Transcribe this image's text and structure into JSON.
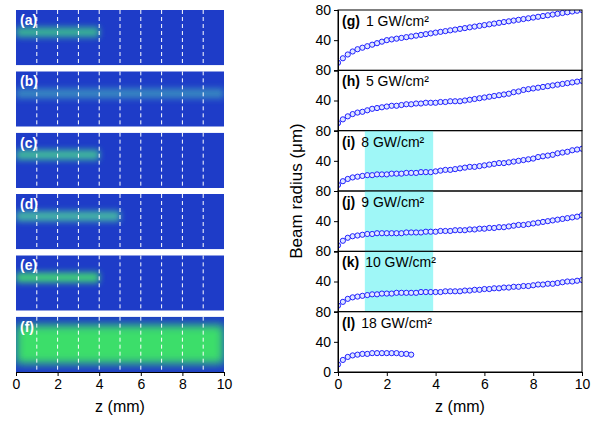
{
  "chart_data": [
    {
      "type": "image",
      "panel": "(a)",
      "xlim": [
        0,
        10
      ],
      "vlines": [
        1,
        2,
        3,
        4,
        5,
        6,
        7,
        8,
        9
      ],
      "beam_z": [
        0,
        4
      ],
      "color": "#3cc090",
      "line_style": "narrow"
    },
    {
      "type": "image",
      "panel": "(b)",
      "xlim": [
        0,
        10
      ],
      "vlines": [
        1,
        2,
        3,
        4,
        5,
        6,
        7,
        8,
        9
      ],
      "beam_z": [
        0,
        10
      ],
      "color": "#3a8fc0",
      "line_style": "narrow"
    },
    {
      "type": "image",
      "panel": "(c)",
      "xlim": [
        0,
        10
      ],
      "vlines": [
        1,
        2,
        3,
        4,
        5,
        6,
        7,
        8,
        9
      ],
      "beam_z": [
        0,
        4
      ],
      "color": "#44c896",
      "line_style": "narrow"
    },
    {
      "type": "image",
      "panel": "(d)",
      "xlim": [
        0,
        10
      ],
      "vlines": [
        1,
        2,
        3,
        4,
        5,
        6,
        7,
        8,
        9
      ],
      "beam_z": [
        0,
        5
      ],
      "color": "#48c4a0",
      "line_style": "narrow"
    },
    {
      "type": "image",
      "panel": "(e)",
      "xlim": [
        0,
        10
      ],
      "vlines": [
        1,
        2,
        3,
        4,
        5,
        6,
        7,
        8,
        9
      ],
      "beam_z": [
        0,
        4
      ],
      "color": "#44e070",
      "line_style": "narrow"
    },
    {
      "type": "image",
      "panel": "(f)",
      "xlim": [
        0,
        10
      ],
      "vlines": [
        1,
        2,
        3,
        4,
        5,
        6,
        7,
        8,
        9
      ],
      "beam_z": [
        0,
        10
      ],
      "color": "#40f060",
      "line_style": "wide",
      "xticks": [
        0,
        2,
        4,
        6,
        8,
        10
      ],
      "xlabel": "z (mm)"
    },
    {
      "type": "scatter",
      "panel": "(g)",
      "title": "1 GW/cm²",
      "ylabel": "Beam radius (μm)",
      "xlim": [
        0,
        10
      ],
      "ylim": [
        0,
        80
      ],
      "yticks": [
        40,
        80
      ],
      "marker": "circle",
      "color": "#2020ff",
      "x": [
        0,
        0.2,
        0.4,
        0.6,
        0.8,
        1,
        1.2,
        1.4,
        1.6,
        1.8,
        2,
        2.2,
        2.4,
        2.6,
        2.8,
        3,
        3.2,
        3.4,
        3.6,
        3.8,
        4,
        4.2,
        4.4,
        4.6,
        4.8,
        5,
        5.2,
        5.4,
        5.6,
        5.8,
        6,
        6.2,
        6.4,
        6.6,
        6.8,
        7,
        7.2,
        7.4,
        7.6,
        7.8,
        8,
        8.2,
        8.4,
        8.6,
        8.8,
        9,
        9.2,
        9.4,
        9.6,
        9.8,
        10
      ],
      "values": [
        10,
        16,
        21,
        25,
        28,
        30,
        32,
        34,
        36,
        38,
        40,
        41,
        42,
        43,
        44,
        45,
        46,
        47,
        48,
        49,
        50,
        51,
        52,
        53,
        54,
        55,
        56,
        57,
        58,
        59,
        60,
        61,
        62,
        63,
        64,
        65,
        66,
        67,
        68,
        69,
        70,
        71,
        72,
        73,
        74,
        75,
        76,
        77,
        78,
        79,
        80
      ]
    },
    {
      "type": "scatter",
      "panel": "(h)",
      "title": "5 GW/cm²",
      "xlim": [
        0,
        10
      ],
      "ylim": [
        0,
        80
      ],
      "yticks": [
        40,
        80
      ],
      "marker": "circle",
      "color": "#2020ff",
      "x": [
        0,
        0.2,
        0.4,
        0.6,
        0.8,
        1,
        1.2,
        1.4,
        1.6,
        1.8,
        2,
        2.2,
        2.4,
        2.6,
        2.8,
        3,
        3.2,
        3.4,
        3.6,
        3.8,
        4,
        4.2,
        4.4,
        4.6,
        4.8,
        5,
        5.2,
        5.4,
        5.6,
        5.8,
        6,
        6.2,
        6.4,
        6.6,
        6.8,
        7,
        7.2,
        7.4,
        7.6,
        7.8,
        8,
        8.2,
        8.4,
        8.6,
        8.8,
        9,
        9.2,
        9.4,
        9.6,
        9.8,
        10
      ],
      "values": [
        10,
        15,
        19,
        22,
        24,
        25,
        27,
        29,
        30,
        31,
        32,
        33,
        33,
        34,
        35,
        35,
        36,
        36,
        37,
        37,
        37,
        38,
        38,
        39,
        39,
        39,
        40,
        41,
        42,
        43,
        44,
        45,
        46,
        47,
        48,
        49,
        51,
        52,
        54,
        55,
        56,
        57,
        58,
        59,
        60,
        61,
        62,
        63,
        64,
        65,
        66
      ]
    },
    {
      "type": "scatter",
      "panel": "(i)",
      "title": "8 GW/cm²",
      "xlim": [
        0,
        10
      ],
      "ylim": [
        0,
        80
      ],
      "yticks": [
        40,
        80
      ],
      "marker": "circle",
      "color": "#2020ff",
      "highlight_z": [
        1.1,
        3.9
      ],
      "x": [
        0,
        0.2,
        0.4,
        0.6,
        0.8,
        1,
        1.2,
        1.4,
        1.6,
        1.8,
        2,
        2.2,
        2.4,
        2.6,
        2.8,
        3,
        3.2,
        3.4,
        3.6,
        3.8,
        4,
        4.2,
        4.4,
        4.6,
        4.8,
        5,
        5.2,
        5.4,
        5.6,
        5.8,
        6,
        6.2,
        6.4,
        6.6,
        6.8,
        7,
        7.2,
        7.4,
        7.6,
        7.8,
        8,
        8.2,
        8.4,
        8.6,
        8.8,
        9,
        9.2,
        9.4,
        9.6,
        9.8,
        10
      ],
      "values": [
        8,
        13,
        16,
        18,
        19,
        20,
        21,
        21,
        22,
        22,
        22,
        23,
        23,
        23,
        24,
        24,
        24,
        25,
        25,
        25,
        26,
        27,
        28,
        28,
        29,
        30,
        31,
        32,
        32,
        33,
        34,
        35,
        36,
        37,
        37,
        38,
        39,
        40,
        41,
        42,
        43,
        45,
        46,
        47,
        48,
        50,
        51,
        52,
        54,
        55,
        56
      ]
    },
    {
      "type": "scatter",
      "panel": "(j)",
      "title": "9 GW/cm²",
      "xlim": [
        0,
        10
      ],
      "ylim": [
        0,
        80
      ],
      "yticks": [
        40,
        80
      ],
      "marker": "circle",
      "color": "#2020ff",
      "highlight_z": [
        1.1,
        3.9
      ],
      "x": [
        0,
        0.2,
        0.4,
        0.6,
        0.8,
        1,
        1.2,
        1.4,
        1.6,
        1.8,
        2,
        2.2,
        2.4,
        2.6,
        2.8,
        3,
        3.2,
        3.4,
        3.6,
        3.8,
        4,
        4.2,
        4.4,
        4.6,
        4.8,
        5,
        5.2,
        5.4,
        5.6,
        5.8,
        6,
        6.2,
        6.4,
        6.6,
        6.8,
        7,
        7.2,
        7.4,
        7.6,
        7.8,
        8,
        8.2,
        8.4,
        8.6,
        8.8,
        9,
        9.2,
        9.4,
        9.6,
        9.8,
        10
      ],
      "values": [
        8,
        14,
        18,
        20,
        21,
        22,
        23,
        23,
        24,
        24,
        24,
        24,
        24,
        24,
        25,
        25,
        25,
        25,
        26,
        26,
        26,
        27,
        27,
        27,
        28,
        28,
        28,
        29,
        29,
        30,
        30,
        31,
        31,
        32,
        32,
        33,
        34,
        35,
        35,
        36,
        37,
        38,
        39,
        40,
        41,
        42,
        43,
        44,
        45,
        46,
        48
      ]
    },
    {
      "type": "scatter",
      "panel": "(k)",
      "title": "10 GW/cm²",
      "xlim": [
        0,
        10
      ],
      "ylim": [
        0,
        80
      ],
      "yticks": [
        40,
        80
      ],
      "marker": "circle",
      "color": "#2020ff",
      "highlight_z": [
        1.1,
        3.9
      ],
      "x": [
        0,
        0.2,
        0.4,
        0.6,
        0.8,
        1,
        1.2,
        1.4,
        1.6,
        1.8,
        2,
        2.2,
        2.4,
        2.6,
        2.8,
        3,
        3.2,
        3.4,
        3.6,
        3.8,
        4,
        4.2,
        4.4,
        4.6,
        4.8,
        5,
        5.2,
        5.4,
        5.6,
        5.8,
        6,
        6.2,
        6.4,
        6.6,
        6.8,
        7,
        7.2,
        7.4,
        7.6,
        7.8,
        8,
        8.2,
        8.4,
        8.6,
        8.8,
        9,
        9.2,
        9.4,
        9.6,
        9.8,
        10
      ],
      "values": [
        8,
        13,
        17,
        19,
        20,
        21,
        22,
        23,
        23,
        24,
        24,
        24,
        25,
        25,
        25,
        25,
        25,
        26,
        26,
        26,
        26,
        26,
        27,
        27,
        27,
        27,
        28,
        28,
        29,
        29,
        30,
        30,
        31,
        31,
        32,
        32,
        33,
        33,
        34,
        34,
        35,
        36,
        36,
        37,
        37,
        38,
        39,
        40,
        40,
        41,
        42
      ]
    },
    {
      "type": "scatter",
      "panel": "(l)",
      "title": "18 GW/cm²",
      "xlim": [
        0,
        10
      ],
      "ylim": [
        0,
        80
      ],
      "yticks": [
        0,
        40,
        80
      ],
      "xticks": [
        0,
        2,
        4,
        6,
        8,
        10
      ],
      "xlabel": "z (mm)",
      "marker": "circle",
      "color": "#2020ff",
      "x": [
        0,
        0.2,
        0.4,
        0.6,
        0.8,
        1,
        1.2,
        1.4,
        1.6,
        1.8,
        2,
        2.2,
        2.4,
        2.6,
        2.8,
        3
      ],
      "values": [
        10,
        16,
        20,
        22,
        23,
        24,
        24,
        25,
        25,
        25,
        25,
        25,
        25,
        24,
        24,
        23
      ]
    }
  ]
}
